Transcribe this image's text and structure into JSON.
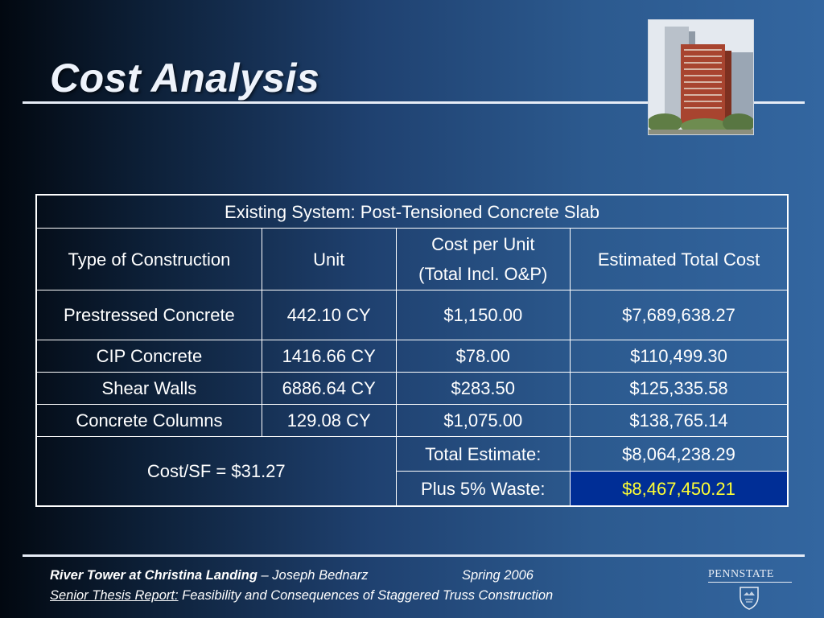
{
  "slide": {
    "title": "Cost Analysis"
  },
  "table": {
    "header": "Existing System: Post-Tensioned Concrete Slab",
    "columns": [
      "Type of Construction",
      "Unit",
      "Cost per Unit",
      "(Total Incl. O&P)",
      "Estimated Total Cost"
    ],
    "rows": [
      [
        "Prestressed Concrete",
        "442.10 CY",
        "$1,150.00",
        "$7,689,638.27"
      ],
      [
        "CIP Concrete",
        "1416.66 CY",
        "$78.00",
        "$110,499.30"
      ],
      [
        "Shear Walls",
        "6886.64 CY",
        "$283.50",
        "$125,335.58"
      ],
      [
        "Concrete Columns",
        "129.08 CY",
        "$1,075.00",
        "$138,765.14"
      ]
    ],
    "cost_sf": "Cost/SF = $31.27",
    "total_label": "Total Estimate:",
    "total_value": "$8,064,238.29",
    "waste_label": "Plus 5% Waste:",
    "waste_value": "$8,467,450.21"
  },
  "footer": {
    "project": "River Tower at Christina Landing",
    "author": " – Joseph Bednarz",
    "season": "Spring 2006",
    "report_label": "Senior Thesis Report:",
    "report_title": " Feasibility and Consequences of Staggered Truss Construction"
  },
  "logo": {
    "text": "PENNSTATE"
  },
  "colors": {
    "highlight_bg": "#002e96",
    "highlight_text": "#ffff33"
  }
}
